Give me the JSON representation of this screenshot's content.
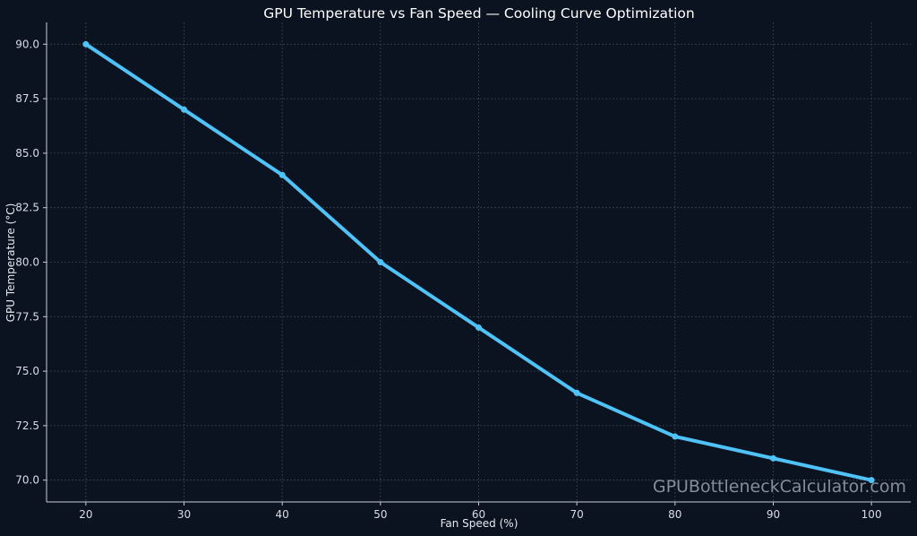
{
  "chart_data": {
    "type": "line",
    "title": "GPU Temperature vs Fan Speed — Cooling Curve Optimization",
    "xlabel": "Fan Speed (%)",
    "ylabel": "GPU Temperature (°C)",
    "x": [
      20,
      30,
      40,
      50,
      60,
      70,
      80,
      90,
      100
    ],
    "series": [
      {
        "values": [
          90,
          87,
          84,
          80,
          77,
          74,
          72,
          71,
          70
        ],
        "color": "#4fc3f7"
      }
    ],
    "xlim": [
      16,
      104
    ],
    "ylim": [
      69,
      91
    ],
    "xticks": [
      "20",
      "30",
      "40",
      "50",
      "60",
      "70",
      "80",
      "90",
      "100"
    ],
    "yticks": [
      "70.0",
      "72.5",
      "75.0",
      "77.5",
      "80.0",
      "82.5",
      "85.0",
      "87.5",
      "90.0"
    ],
    "grid": true,
    "background": "#0b1320",
    "watermark": "GPUBottleneckCalculator.com"
  }
}
